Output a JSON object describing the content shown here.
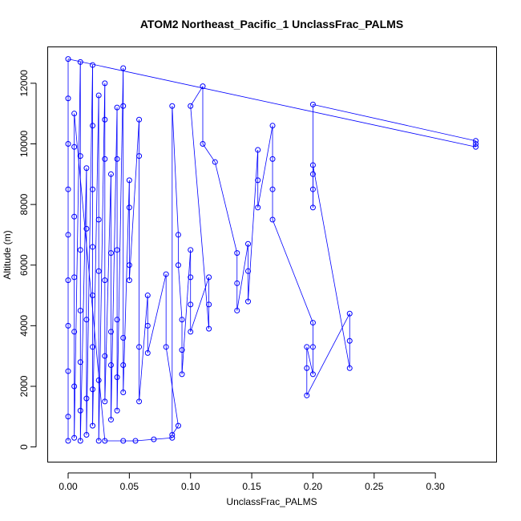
{
  "chart_data": {
    "type": "scatter",
    "title": "ATOM2 Northeast_Pacific_1 UnclassFrac_PALMS",
    "xlabel": "UnclassFrac_PALMS",
    "ylabel": "Altitude (m)",
    "xlim": [
      -0.0167,
      0.35
    ],
    "ylim": [
      -500,
      13200
    ],
    "xticks": [
      0.0,
      0.05,
      0.1,
      0.15,
      0.2,
      0.25,
      0.3
    ],
    "xtick_labels": [
      "0.00",
      "0.05",
      "0.10",
      "0.15",
      "0.20",
      "0.25",
      "0.30"
    ],
    "yticks": [
      0,
      2000,
      4000,
      6000,
      8000,
      10000,
      12000
    ],
    "ytick_labels": [
      "0",
      "2000",
      "4000",
      "6000",
      "8000",
      "10000",
      "12000"
    ],
    "grid": false,
    "legend": "none",
    "color": "#0000ff",
    "marker": "open-circle",
    "series": [
      {
        "values": [
          [
            0.0,
            200
          ],
          [
            0.0,
            1000
          ],
          [
            0.0,
            2500
          ],
          [
            0.0,
            4000
          ],
          [
            0.0,
            5500
          ],
          [
            0.0,
            7000
          ],
          [
            0.0,
            8500
          ],
          [
            0.0,
            10000
          ],
          [
            0.0,
            11500
          ],
          [
            0.0,
            12800
          ],
          [
            0.333,
            9900
          ],
          [
            0.333,
            10000
          ],
          [
            0.333,
            10100
          ],
          [
            0.2,
            11300
          ],
          [
            0.2,
            7900
          ],
          [
            0.2,
            8500
          ],
          [
            0.2,
            9000
          ],
          [
            0.2,
            9300
          ],
          [
            0.23,
            2600
          ],
          [
            0.23,
            3500
          ],
          [
            0.23,
            4400
          ],
          [
            0.195,
            1700
          ],
          [
            0.195,
            2600
          ],
          [
            0.195,
            3300
          ],
          [
            0.2,
            2400
          ],
          [
            0.2,
            3300
          ],
          [
            0.2,
            4100
          ],
          [
            0.167,
            7500
          ],
          [
            0.167,
            8500
          ],
          [
            0.167,
            9500
          ],
          [
            0.167,
            10600
          ],
          [
            0.155,
            7900
          ],
          [
            0.155,
            8800
          ],
          [
            0.155,
            9800
          ],
          [
            0.147,
            4800
          ],
          [
            0.147,
            5800
          ],
          [
            0.147,
            6700
          ],
          [
            0.138,
            4500
          ],
          [
            0.138,
            5400
          ],
          [
            0.138,
            6400
          ],
          [
            0.12,
            9400
          ],
          [
            0.11,
            10000
          ],
          [
            0.11,
            11900
          ],
          [
            0.1,
            11250
          ],
          [
            0.115,
            3900
          ],
          [
            0.115,
            4700
          ],
          [
            0.115,
            5600
          ],
          [
            0.1,
            3800
          ],
          [
            0.1,
            4700
          ],
          [
            0.1,
            5600
          ],
          [
            0.1,
            6500
          ],
          [
            0.093,
            2400
          ],
          [
            0.093,
            3200
          ],
          [
            0.093,
            4200
          ],
          [
            0.09,
            6000
          ],
          [
            0.09,
            7000
          ],
          [
            0.085,
            11250
          ],
          [
            0.085,
            400
          ],
          [
            0.09,
            700
          ],
          [
            0.08,
            3300
          ],
          [
            0.08,
            5700
          ],
          [
            0.065,
            3100
          ],
          [
            0.065,
            4000
          ],
          [
            0.065,
            5000
          ],
          [
            0.058,
            1500
          ],
          [
            0.058,
            3300
          ],
          [
            0.058,
            9600
          ],
          [
            0.058,
            10800
          ],
          [
            0.05,
            5500
          ],
          [
            0.05,
            6000
          ],
          [
            0.05,
            7900
          ],
          [
            0.05,
            8800
          ],
          [
            0.045,
            1800
          ],
          [
            0.045,
            2700
          ],
          [
            0.045,
            3600
          ],
          [
            0.045,
            11250
          ],
          [
            0.045,
            12500
          ],
          [
            0.04,
            1200
          ],
          [
            0.04,
            2300
          ],
          [
            0.04,
            4200
          ],
          [
            0.04,
            6500
          ],
          [
            0.04,
            9500
          ],
          [
            0.04,
            11200
          ],
          [
            0.035,
            900
          ],
          [
            0.035,
            2700
          ],
          [
            0.035,
            3800
          ],
          [
            0.035,
            6400
          ],
          [
            0.035,
            9000
          ],
          [
            0.03,
            1500
          ],
          [
            0.03,
            3000
          ],
          [
            0.03,
            5500
          ],
          [
            0.03,
            9500
          ],
          [
            0.03,
            10800
          ],
          [
            0.03,
            12000
          ],
          [
            0.025,
            200
          ],
          [
            0.025,
            2200
          ],
          [
            0.025,
            5800
          ],
          [
            0.025,
            7500
          ],
          [
            0.025,
            11600
          ],
          [
            0.02,
            700
          ],
          [
            0.02,
            1900
          ],
          [
            0.02,
            3300
          ],
          [
            0.02,
            5000
          ],
          [
            0.02,
            6600
          ],
          [
            0.02,
            8500
          ],
          [
            0.02,
            10600
          ],
          [
            0.02,
            12600
          ],
          [
            0.015,
            400
          ],
          [
            0.015,
            1600
          ],
          [
            0.015,
            4200
          ],
          [
            0.015,
            7200
          ],
          [
            0.015,
            9200
          ],
          [
            0.01,
            200
          ],
          [
            0.01,
            1200
          ],
          [
            0.01,
            2800
          ],
          [
            0.01,
            4500
          ],
          [
            0.01,
            6500
          ],
          [
            0.01,
            9600
          ],
          [
            0.01,
            12700
          ],
          [
            0.005,
            300
          ],
          [
            0.005,
            2000
          ],
          [
            0.005,
            3800
          ],
          [
            0.005,
            5600
          ],
          [
            0.005,
            7600
          ],
          [
            0.005,
            9900
          ],
          [
            0.005,
            11000
          ],
          [
            0.03,
            200
          ],
          [
            0.045,
            200
          ],
          [
            0.055,
            200
          ],
          [
            0.07,
            250
          ],
          [
            0.085,
            300
          ]
        ]
      }
    ]
  }
}
